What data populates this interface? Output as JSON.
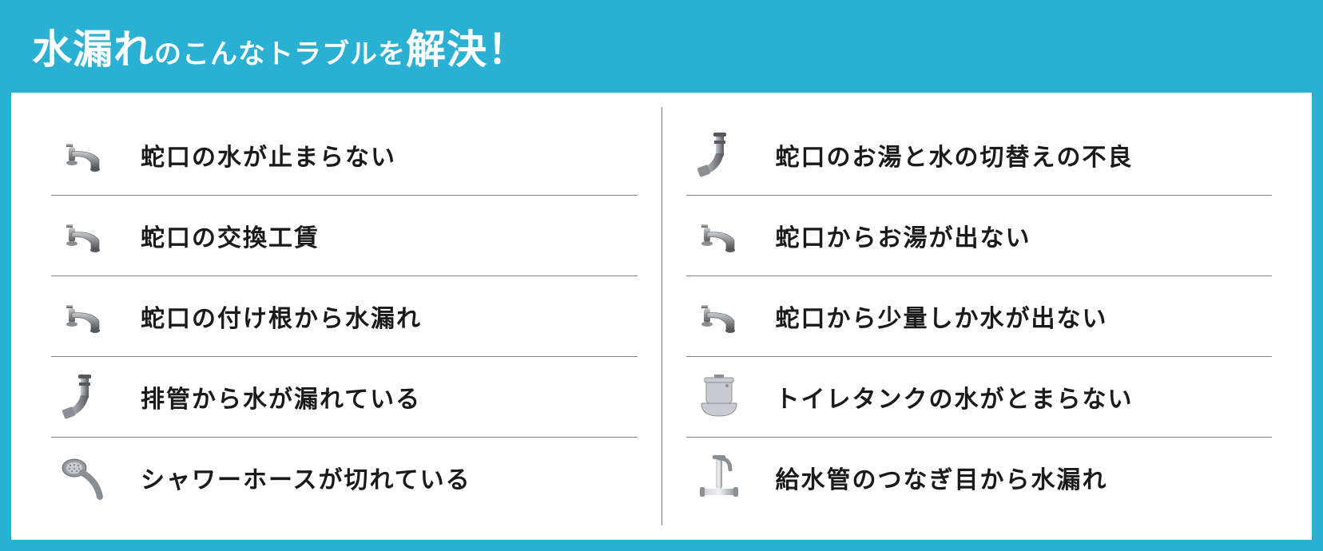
{
  "colors": {
    "accent": "#2ab0d3",
    "header_text": "#ffffff",
    "body_bg": "#ffffff",
    "divider": "#808080",
    "label_text": "#1a1a1a",
    "icon_main": "#8a8f94",
    "icon_light": "#c8ccd0",
    "icon_dark": "#55595c"
  },
  "header": {
    "part1": "水漏れ",
    "part2": "のこんなトラブルを",
    "part3": "解決！"
  },
  "left": [
    {
      "icon": "faucet",
      "label": "蛇口の水が止まらない"
    },
    {
      "icon": "faucet",
      "label": "蛇口の交換工賃"
    },
    {
      "icon": "faucet",
      "label": "蛇口の付け根から水漏れ"
    },
    {
      "icon": "pipe",
      "label": "排管から水が漏れている"
    },
    {
      "icon": "shower",
      "label": "シャワーホースが切れている"
    }
  ],
  "right": [
    {
      "icon": "pipe",
      "label": "蛇口のお湯と水の切替えの不良"
    },
    {
      "icon": "faucet",
      "label": "蛇口からお湯が出ない"
    },
    {
      "icon": "faucet",
      "label": "蛇口から少量しか水が出ない"
    },
    {
      "icon": "toilet",
      "label": "トイレタンクの水がとまらない"
    },
    {
      "icon": "tap",
      "label": "給水管のつなぎ目から水漏れ"
    }
  ]
}
